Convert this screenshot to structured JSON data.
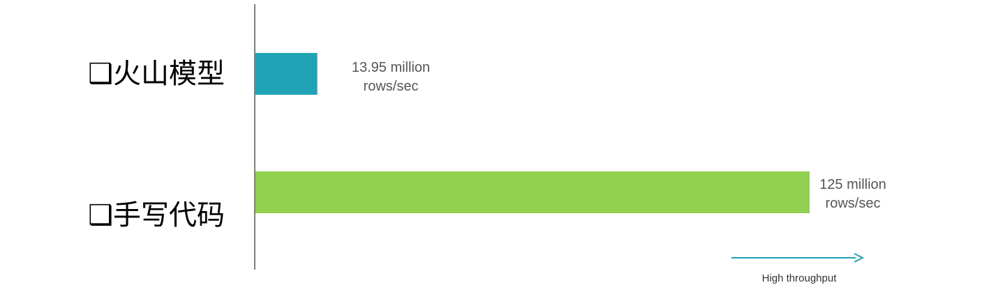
{
  "chart_data": {
    "type": "bar",
    "orientation": "horizontal",
    "categories": [
      "❑火山模型",
      "❑手写代码"
    ],
    "values": [
      13.95,
      125
    ],
    "unit": "million rows/sec",
    "data_labels": [
      [
        "13.95 million",
        "rows/sec"
      ],
      [
        "125 million",
        "rows/sec"
      ]
    ],
    "colors": [
      "#1fa3b5",
      "#92d050"
    ],
    "xlim": [
      0,
      125
    ],
    "grid": false,
    "legend": "none",
    "annotation": {
      "text": "High throughput",
      "arrow_color": "#1fa3b5",
      "direction": "right"
    }
  }
}
